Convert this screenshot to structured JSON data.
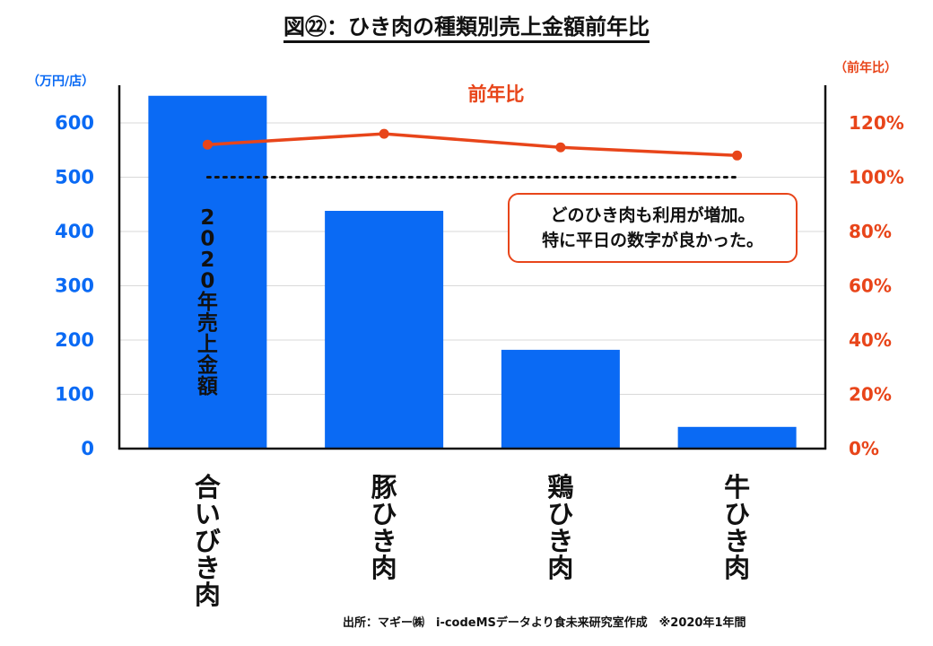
{
  "title": "図㉒：ひき肉の種類別売上金額前年比",
  "callout": {
    "line1": "どのひき肉も利用が増加。",
    "line2": "特に平日の数字が良かった。"
  },
  "source": "出所：マギー㈱　i-codeMSデータより食未来研究室作成　※2020年1年間",
  "colors": {
    "bar": "#0a6af4",
    "line": "#e8451a",
    "axis": "#111111"
  },
  "chart_data": {
    "type": "bar",
    "categories": [
      "合いびき肉",
      "豚ひき肉",
      "鶏ひき肉",
      "牛ひき肉"
    ],
    "series": [
      {
        "name": "2020年売上金額",
        "values": [
          650,
          438,
          182,
          40
        ],
        "axis": "left"
      }
    ],
    "line_series": [
      {
        "name": "前年比",
        "values": [
          112,
          116,
          111,
          108
        ],
        "axis": "right"
      }
    ],
    "reference_line": {
      "axis": "right",
      "value": 100,
      "style": "dotted"
    },
    "y_left": {
      "unit": "（万円/店）",
      "ylim": [
        0,
        600
      ],
      "ticks": [
        "0",
        "100",
        "200",
        "300",
        "400",
        "500",
        "600"
      ]
    },
    "y_right": {
      "unit": "（前年比）",
      "ylim": [
        0,
        120
      ],
      "ticks": [
        "0%",
        "20%",
        "40%",
        "60%",
        "80%",
        "100%",
        "120%"
      ]
    },
    "grid": true,
    "bar_label": "2020年売上金額",
    "line_label": "前年比"
  }
}
